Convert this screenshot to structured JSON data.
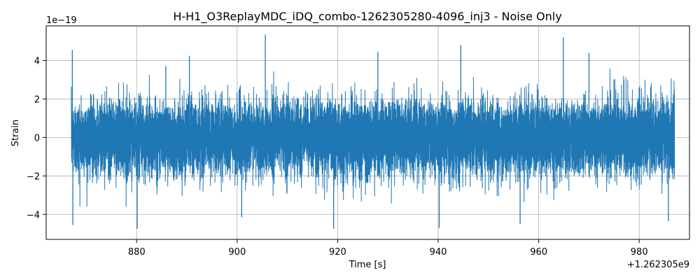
{
  "chart_data": {
    "type": "line",
    "title": "H-H1_O3ReplayMDC_iDQ_combo-1262305280-4096_inj3 - Noise Only",
    "xlabel": "Time [s]",
    "ylabel": "Strain",
    "x_offset_label": "+1.262305e9",
    "y_scale_label": "1e−19",
    "xlim": [
      862,
      990
    ],
    "ylim": [
      -5.3,
      5.8
    ],
    "x_ticks": [
      880,
      900,
      920,
      940,
      960,
      980
    ],
    "x_tick_labels": [
      "880",
      "900",
      "920",
      "940",
      "960",
      "980"
    ],
    "y_ticks": [
      -4,
      -2,
      0,
      2,
      4
    ],
    "y_tick_labels": [
      "−4",
      "−2",
      "0",
      "2",
      "4"
    ],
    "grid": true,
    "series": [
      {
        "color": "#1f77b4",
        "x_start": 867,
        "x_end": 987,
        "noise_sigma": 0.95,
        "peaks": [
          {
            "x": 867.2,
            "y": 4.55
          },
          {
            "x": 867.3,
            "y": -4.55
          },
          {
            "x": 880.1,
            "y": -4.75
          },
          {
            "x": 885.8,
            "y": 3.7
          },
          {
            "x": 890.5,
            "y": 4.25
          },
          {
            "x": 900.9,
            "y": -4.15
          },
          {
            "x": 905.6,
            "y": 5.35
          },
          {
            "x": 919.2,
            "y": -4.75
          },
          {
            "x": 928.0,
            "y": 4.45
          },
          {
            "x": 940.2,
            "y": -4.7
          },
          {
            "x": 944.5,
            "y": 4.8
          },
          {
            "x": 956.3,
            "y": -4.5
          },
          {
            "x": 964.9,
            "y": 5.2
          },
          {
            "x": 970.0,
            "y": 4.4
          },
          {
            "x": 985.8,
            "y": -4.35
          }
        ]
      }
    ]
  }
}
